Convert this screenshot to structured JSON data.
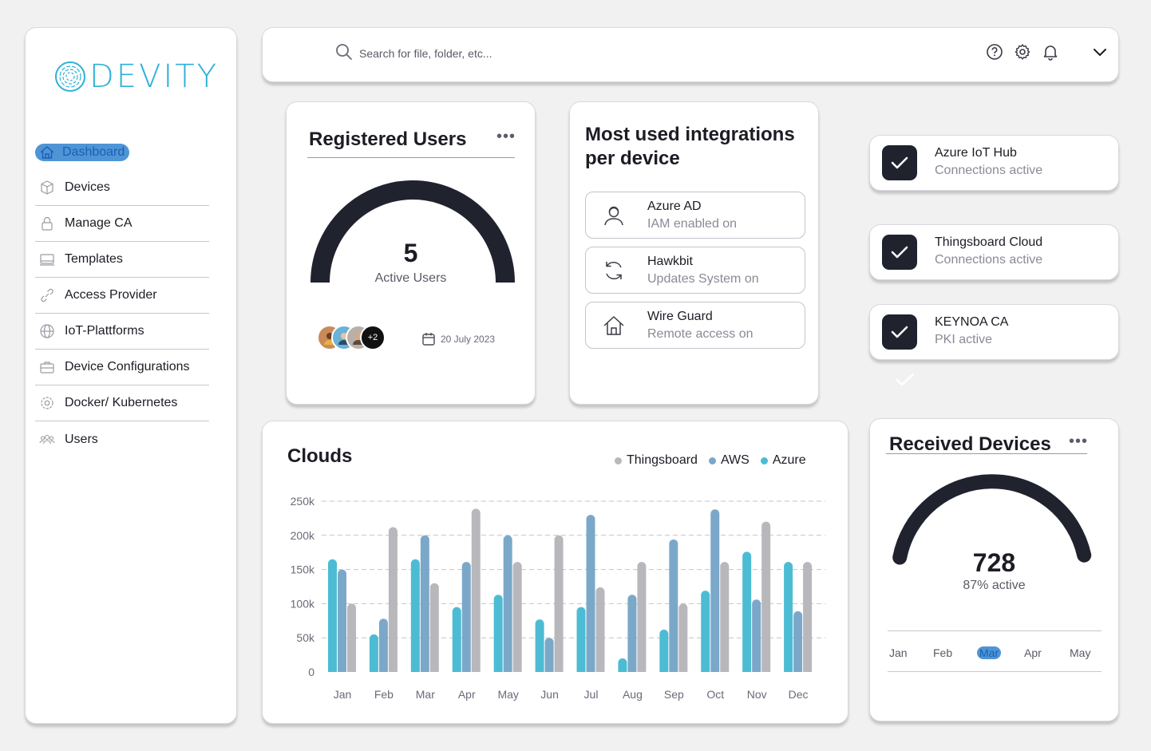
{
  "brand": {
    "name": "DEVITY",
    "color": "#2fb1d6"
  },
  "sidebar": {
    "items": [
      {
        "label": "Dashboard",
        "icon": "home-icon",
        "active": true
      },
      {
        "label": "Devices",
        "icon": "cube-icon"
      },
      {
        "label": "Manage CA",
        "icon": "lock-icon"
      },
      {
        "label": "Templates",
        "icon": "laptop-icon"
      },
      {
        "label": "Access Provider",
        "icon": "link-icon"
      },
      {
        "label": "IoT-Plattforms",
        "icon": "globe-icon"
      },
      {
        "label": "Device Configurations",
        "icon": "briefcase-icon"
      },
      {
        "label": "Docker/ Kubernetes",
        "icon": "gear-icon"
      },
      {
        "label": "Users",
        "icon": "users-icon"
      }
    ]
  },
  "topbar": {
    "search_placeholder": "Search for file, folder, etc...",
    "icons": [
      "help-icon",
      "settings-icon",
      "bell-icon",
      "chevron-down-icon"
    ]
  },
  "registered_users": {
    "title": "Registered Users",
    "count": "5",
    "count_label": "Active Users",
    "extra_avatars": "+2",
    "date": "20 July 2023"
  },
  "integrations": {
    "title": "Most used integrations per device",
    "items": [
      {
        "name": "Azure AD",
        "status": "IAM enabled on",
        "icon": "user-icon"
      },
      {
        "name": "Hawkbit",
        "status": "Updates System on",
        "icon": "refresh-icon"
      },
      {
        "name": "Wire Guard",
        "status": "Remote access on",
        "icon": "house-icon"
      }
    ]
  },
  "connections": [
    {
      "name": "Azure IoT Hub",
      "status": "Connections active"
    },
    {
      "name": "Thingsboard Cloud",
      "status": "Connections active"
    },
    {
      "name": "KEYNOA CA",
      "status": "PKI active"
    }
  ],
  "received_devices": {
    "title": "Received Devices",
    "value": "728",
    "subtitle": "87% active",
    "fraction": 0.87,
    "months": [
      "Jan",
      "Feb",
      "Mar",
      "Apr",
      "May"
    ],
    "selected_month": "Mar"
  },
  "chart_data": {
    "type": "bar",
    "title": "Clouds",
    "categories": [
      "Jan",
      "Feb",
      "Mar",
      "Apr",
      "May",
      "Jun",
      "Jul",
      "Aug",
      "Sep",
      "Oct",
      "Nov",
      "Dec"
    ],
    "series": [
      {
        "name": "Azure",
        "color": "#4cbcd4",
        "values": [
          165,
          55,
          165,
          95,
          113,
          77,
          95,
          20,
          62,
          119,
          176,
          161
        ]
      },
      {
        "name": "AWS",
        "color": "#7ba8c9",
        "values": [
          150,
          78,
          200,
          161,
          200,
          50,
          230,
          113,
          194,
          238,
          106,
          89
        ]
      },
      {
        "name": "Thingsboard",
        "color": "#b8b8bc",
        "values": [
          100,
          212,
          130,
          239,
          161,
          200,
          124,
          161,
          100,
          161,
          220,
          161
        ]
      }
    ],
    "legend_order": [
      "Thingsboard",
      "AWS",
      "Azure"
    ],
    "y_ticks": [
      "0",
      "50k",
      "100k",
      "150k",
      "200k",
      "250k"
    ],
    "ylim": [
      0,
      250
    ],
    "y_unit": "k",
    "grid": true,
    "legend_position": "top-right"
  }
}
